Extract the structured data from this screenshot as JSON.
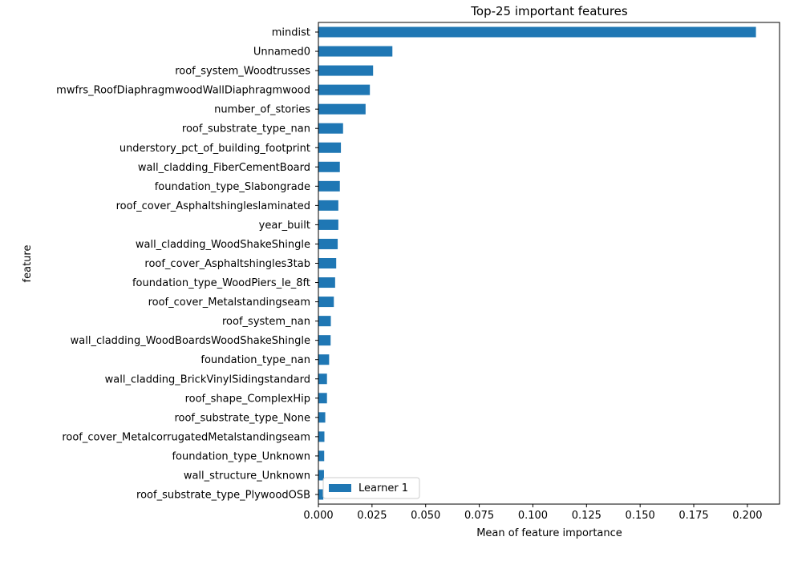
{
  "chart_data": {
    "type": "bar",
    "orientation": "horizontal",
    "title": "Top-25 important features",
    "xlabel": "Mean of feature importance",
    "ylabel": "feature",
    "xlim": [
      0,
      0.215
    ],
    "xticks": [
      "0.000",
      "0.025",
      "0.050",
      "0.075",
      "0.100",
      "0.125",
      "0.150",
      "0.175",
      "0.200"
    ],
    "xtick_values": [
      0,
      0.025,
      0.05,
      0.075,
      0.1,
      0.125,
      0.15,
      0.175,
      0.2
    ],
    "grid": false,
    "legend_position": "bottom-left",
    "bar_color": "#1f77b4",
    "categories": [
      "mindist",
      "Unnamed0",
      "roof_system_Woodtrusses",
      "mwfrs_RoofDiaphragmwoodWallDiaphragmwood",
      "number_of_stories",
      "roof_substrate_type_nan",
      "understory_pct_of_building_footprint",
      "wall_cladding_FiberCementBoard",
      "foundation_type_Slabongrade",
      "roof_cover_Asphaltshingleslaminated",
      "year_built",
      "wall_cladding_WoodShakeShingle",
      "roof_cover_Asphaltshingles3tab",
      "foundation_type_WoodPiers_le_8ft",
      "roof_cover_Metalstandingseam",
      "roof_system_nan",
      "wall_cladding_WoodBoardsWoodShakeShingle",
      "foundation_type_nan",
      "wall_cladding_BrickVinylSidingstandard",
      "roof_shape_ComplexHip",
      "roof_substrate_type_None",
      "roof_cover_MetalcorrugatedMetalstandingseam",
      "foundation_type_Unknown",
      "wall_structure_Unknown",
      "roof_substrate_type_PlywoodOSB"
    ],
    "series": [
      {
        "name": "Learner 1",
        "values": [
          0.204,
          0.0345,
          0.0255,
          0.024,
          0.022,
          0.0115,
          0.0105,
          0.01,
          0.01,
          0.0093,
          0.0093,
          0.009,
          0.0083,
          0.0078,
          0.0072,
          0.0058,
          0.0057,
          0.005,
          0.004,
          0.004,
          0.0032,
          0.0028,
          0.0027,
          0.0026,
          0.0023
        ]
      }
    ]
  }
}
